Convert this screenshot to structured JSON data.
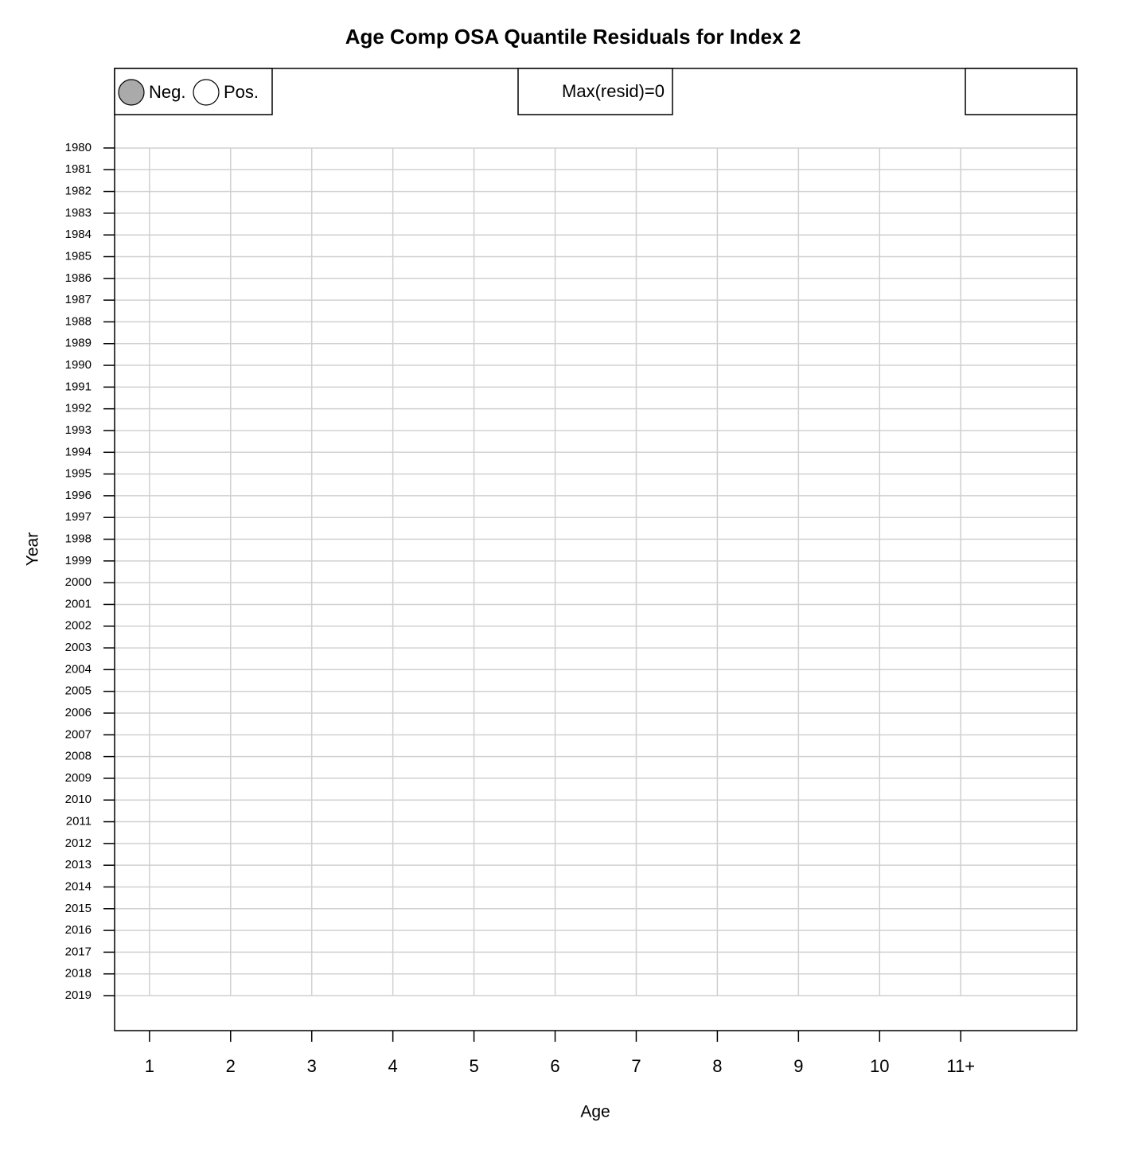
{
  "chart_data": {
    "type": "bubble",
    "title": "Age Comp OSA Quantile Residuals for Index 2",
    "x_label": "Age",
    "y_label": "Year",
    "xlim": [
      0.57,
      12.43
    ],
    "xticks": [
      1,
      2,
      3,
      4,
      5,
      6,
      7,
      8,
      9,
      10,
      {
        "value": 11,
        "label": "11+"
      }
    ],
    "ylim": [
      2020.61,
      1976.34
    ],
    "yticks": [
      1980,
      1981,
      1982,
      1983,
      1984,
      1985,
      1986,
      1987,
      1988,
      1989,
      1990,
      1991,
      1992,
      1993,
      1994,
      1995,
      1996,
      1997,
      1998,
      1999,
      2000,
      2001,
      2002,
      2003,
      2004,
      2005,
      2006,
      2007,
      2008,
      2009,
      2010,
      2011,
      2012,
      2013,
      2014,
      2015,
      2016,
      2017,
      2018,
      2019
    ],
    "grid": true,
    "series": [
      {
        "name": "Neg.",
        "color": "#aaaaaa",
        "values": []
      },
      {
        "name": "Pos.",
        "color": "#ffffff",
        "values": []
      }
    ],
    "annotation": "Max(resid)=0"
  }
}
